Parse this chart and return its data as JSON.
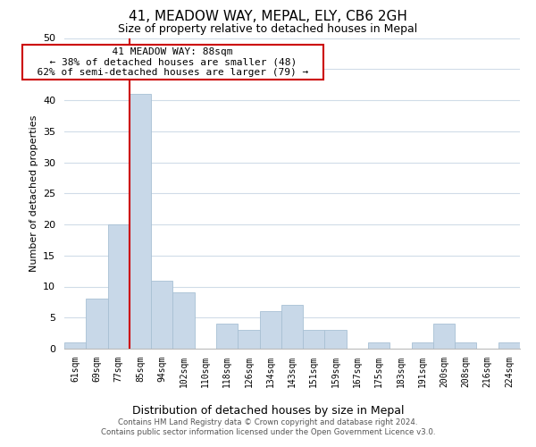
{
  "title": "41, MEADOW WAY, MEPAL, ELY, CB6 2GH",
  "subtitle": "Size of property relative to detached houses in Mepal",
  "xlabel": "Distribution of detached houses by size in Mepal",
  "ylabel": "Number of detached properties",
  "bin_labels": [
    "61sqm",
    "69sqm",
    "77sqm",
    "85sqm",
    "94sqm",
    "102sqm",
    "110sqm",
    "118sqm",
    "126sqm",
    "134sqm",
    "143sqm",
    "151sqm",
    "159sqm",
    "167sqm",
    "175sqm",
    "183sqm",
    "191sqm",
    "200sqm",
    "208sqm",
    "216sqm",
    "224sqm"
  ],
  "bar_heights": [
    1,
    8,
    20,
    41,
    11,
    9,
    0,
    4,
    3,
    6,
    7,
    3,
    3,
    0,
    1,
    0,
    1,
    4,
    1,
    0,
    1
  ],
  "bar_color": "#c8d8e8",
  "bar_edge_color": "#a8c0d4",
  "red_line_color": "#cc0000",
  "annotation_title": "41 MEADOW WAY: 88sqm",
  "annotation_line1": "← 38% of detached houses are smaller (48)",
  "annotation_line2": "62% of semi-detached houses are larger (79) →",
  "annotation_box_color": "#ffffff",
  "annotation_box_edge": "#cc0000",
  "ylim": [
    0,
    50
  ],
  "yticks": [
    0,
    5,
    10,
    15,
    20,
    25,
    30,
    35,
    40,
    45,
    50
  ],
  "footer_line1": "Contains HM Land Registry data © Crown copyright and database right 2024.",
  "footer_line2": "Contains public sector information licensed under the Open Government Licence v3.0.",
  "bg_color": "#ffffff",
  "grid_color": "#d0dce8"
}
